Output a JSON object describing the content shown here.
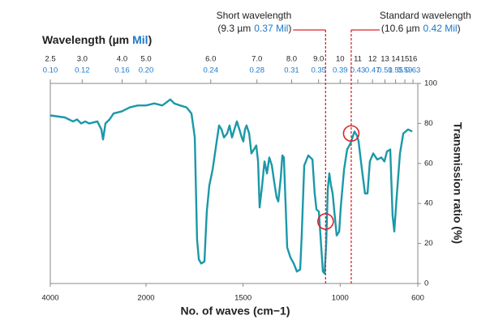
{
  "chart_data": {
    "type": "line",
    "top_axis_title": {
      "text": "Wavelength (µm",
      "unit": "Mil",
      "close": ")"
    },
    "xlabel": "No. of waves (cm−1)",
    "ylabel": "Transmission ratio (%)",
    "xlim": [
      4000,
      600
    ],
    "xticks": [
      4000,
      2000,
      1500,
      1000,
      600
    ],
    "ylim": [
      0,
      100
    ],
    "yticks": [
      0,
      20,
      40,
      60,
      80,
      100
    ],
    "um_ticks": [
      {
        "value": 2.5,
        "label": "2.5"
      },
      {
        "value": 3,
        "label": "3.0"
      },
      {
        "value": 4,
        "label": "4.0"
      },
      {
        "value": 5,
        "label": "5.0"
      },
      {
        "value": 6,
        "label": "6.0"
      },
      {
        "value": 7,
        "label": "7.0"
      },
      {
        "value": 8,
        "label": "8.0"
      },
      {
        "value": 9,
        "label": "9.0"
      },
      10,
      11,
      12,
      13,
      14,
      15,
      16
    ],
    "mil_labels": [
      "0.10",
      "0.12",
      "0.16",
      "0.20",
      "0.24",
      "0.28",
      "0.31",
      "0.35",
      "0.39",
      "0.43",
      "0.47",
      "0.51",
      "0.55",
      "0.59",
      "0.63"
    ],
    "mil_color": "#1f78c8",
    "color": "#1b98a8",
    "x": [
      4000,
      3695,
      3525,
      3441,
      3356,
      3271,
      3186,
      3017,
      2932,
      2898,
      2847,
      2763,
      2678,
      2508,
      2339,
      2169,
      2000,
      1958,
      1916,
      1875,
      1854,
      1824,
      1791,
      1766,
      1749,
      1737,
      1728,
      1716,
      1699,
      1687,
      1674,
      1657,
      1636,
      1624,
      1611,
      1599,
      1582,
      1570,
      1557,
      1545,
      1532,
      1519,
      1507,
      1499,
      1490,
      1482,
      1469,
      1457,
      1444,
      1432,
      1423,
      1415,
      1402,
      1390,
      1377,
      1365,
      1352,
      1340,
      1327,
      1319,
      1306,
      1298,
      1290,
      1273,
      1256,
      1239,
      1223,
      1206,
      1198,
      1185,
      1164,
      1143,
      1131,
      1122,
      1110,
      1089,
      1080,
      1072,
      1064,
      1056,
      1047,
      1039,
      1030,
      1018,
      1005,
      997,
      980,
      964,
      947,
      926,
      914,
      905,
      888,
      872,
      859,
      847,
      830,
      809,
      788,
      772,
      759,
      742,
      730,
      721,
      709,
      692,
      675,
      650,
      629
    ],
    "values": [
      84,
      83,
      81,
      82,
      80,
      81,
      80,
      81,
      77,
      72,
      80,
      82,
      85,
      86,
      88,
      89,
      89,
      90,
      89,
      92,
      90,
      89,
      88,
      85,
      73,
      22,
      12,
      10,
      11,
      36,
      49,
      57,
      71,
      79,
      77,
      73,
      75,
      79,
      73,
      77,
      81,
      77,
      73,
      71,
      77,
      79,
      75,
      65,
      67,
      69,
      61,
      38,
      49,
      61,
      55,
      63,
      59,
      51,
      43,
      41,
      53,
      64,
      63,
      18,
      13,
      10,
      6,
      7,
      24,
      59,
      64,
      62,
      45,
      37,
      36,
      6,
      5,
      20,
      47,
      55,
      49,
      45,
      36,
      24,
      26,
      38,
      57,
      67,
      70,
      76,
      74,
      71,
      57,
      45,
      45,
      61,
      65,
      62,
      63,
      61,
      66,
      67,
      34,
      26,
      43,
      65,
      75,
      77,
      76
    ],
    "annotations": [
      {
        "title": "Short wavelength",
        "um": "(9.3 µm",
        "mil": "0.37 Mil",
        "close": ")",
        "marker_x": 1075,
        "marker_y": 31,
        "color": "#d9252b"
      },
      {
        "title": "Standard wavelength",
        "um": "(10.6 µm",
        "mil": "0.42 Mil",
        "close": ")",
        "marker_x": 943,
        "marker_y": 75,
        "color": "#d9252b"
      }
    ]
  }
}
